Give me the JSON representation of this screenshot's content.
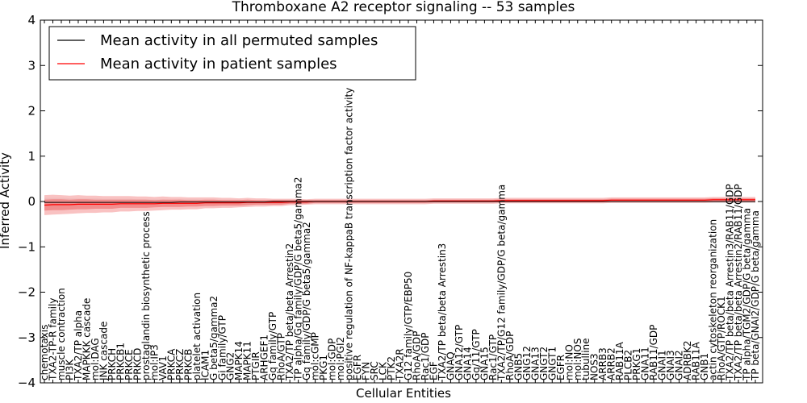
{
  "chart_data": {
    "type": "line",
    "title": "Thromboxane A2 receptor signaling -- 53 samples",
    "xlabel": "Cellular Entities",
    "ylabel": "Inferred Activity",
    "ylim": [
      -4,
      4
    ],
    "yticks": [
      -4,
      -3,
      -2,
      -1,
      0,
      1,
      2,
      3,
      4
    ],
    "ytick_labels": [
      "−4",
      "−3",
      "−2",
      "−1",
      "0",
      "1",
      "2",
      "3",
      "4"
    ],
    "legend_position": "top-left",
    "categories": [
      "chemotaxis",
      "TXA2-TP-R family",
      "muscle contraction",
      "PI3K",
      "TXA2/TP alpha",
      "MAPKKK cascade",
      "mol:DAG",
      "JNK cascade",
      "PRKCH",
      "PRKCB1",
      "PRKCE",
      "PRKCD",
      "prostaglandin biosynthetic process",
      "mol:IP3",
      "VAV1",
      "PRKCA",
      "PRKCZ",
      "PRKCB",
      "platelet activation",
      "ICAM1",
      "G beta5/gamma2",
      "Gi family/GTP",
      "GNG2",
      "MAPK14",
      "MAPK11",
      "PTGIR",
      "ARHGEF1",
      "Gq family/GTP",
      "RhoA/GTP",
      "TXA2/TP beta/beta Arrestin2",
      "TP alpha/Gq family/GDP/G beta5/gamma2",
      "Gq family/GDP/G beta5/gamma2",
      "mol:cGMP",
      "PKG1",
      "mol:GDP",
      "mol:PGI2",
      "positive regulation of NF-kappaB transcription factor activity",
      "EGFR",
      "FYN",
      "SRC",
      "LCK",
      "PTK2",
      "TXA2R",
      "G12 family/GTP/EBP50",
      "RhoA/GDP",
      "Rac1/GDP",
      "EGF",
      "TXA2/TP beta/beta Arrestin3",
      "GNAQ",
      "GNA12/GTP",
      "GNA14",
      "Gq/11/GTP",
      "GNA15",
      "Rac1/GTP",
      "TXA2/TP/G12 family/GDP/G beta/gamma",
      "RhoA/GDP",
      "GNB5",
      "GNG12",
      "GNA13",
      "GNGT2",
      "GNGT1",
      "EGFR",
      "mol:NO",
      "mol:NOS",
      "tubulline",
      "NOS3",
      "ARRB3",
      "ARRB2",
      "RAB11A",
      "PLCB2",
      "PRKG1",
      "GNA11",
      "RAB11/GDP",
      "GNAI1",
      "GNAI3",
      "GNAI2",
      "ADRBK2",
      "RAB11A",
      "GNB1",
      "actin cytoskeleton reorganization",
      "RhoA/GTP/ROCK1",
      "TXA2/TP beta/beta Arrestin3/RAB11/GDP",
      "TXA2/TP beta/beta Arrestin2/RAB11/GDP",
      "TP alpha/TGM2/GDP/G beta/gamma",
      "TP beta/GNAI2/GDP/G beta/gamma"
    ],
    "series": [
      {
        "name": "Mean activity in all permuted samples",
        "color": "#000000",
        "values": [
          -0.02,
          -0.02,
          -0.02,
          -0.02,
          -0.02,
          -0.02,
          -0.02,
          -0.02,
          -0.02,
          -0.02,
          -0.02,
          -0.02,
          -0.02,
          -0.02,
          -0.02,
          -0.02,
          -0.01,
          -0.01,
          -0.01,
          -0.01,
          -0.01,
          -0.01,
          -0.01,
          -0.01,
          -0.01,
          -0.01,
          -0.01,
          0.0,
          0.0,
          0.0,
          0.0,
          0.0,
          0.0,
          0.0,
          0.0,
          0.0,
          0.0,
          0.0,
          0.0,
          0.0,
          0.0,
          0.0,
          0.0,
          0.0,
          0.0,
          0.0,
          0.0,
          0.0,
          0.0,
          0.0,
          0.0,
          0.0,
          0.0,
          0.0,
          0.0,
          0.0,
          0.0,
          0.0,
          0.0,
          0.0,
          0.0,
          0.0,
          0.0,
          0.0,
          0.0,
          0.0,
          0.0,
          0.0,
          0.0,
          0.0,
          0.0,
          0.0,
          0.0,
          0.0,
          0.0,
          0.0,
          0.0,
          0.0,
          0.0,
          0.0,
          0.0,
          0.0,
          0.0,
          0.0,
          0.0
        ]
      },
      {
        "name": "Mean activity in patient samples",
        "color": "#ff0000",
        "values": [
          -0.08,
          -0.07,
          -0.07,
          -0.07,
          -0.06,
          -0.06,
          -0.06,
          -0.06,
          -0.06,
          -0.05,
          -0.05,
          -0.05,
          -0.05,
          -0.05,
          -0.04,
          -0.04,
          -0.04,
          -0.04,
          -0.04,
          -0.03,
          -0.03,
          -0.03,
          -0.03,
          -0.03,
          -0.02,
          -0.02,
          -0.02,
          -0.02,
          -0.02,
          -0.01,
          -0.01,
          -0.01,
          0.0,
          0.0,
          0.0,
          0.0,
          0.0,
          0.0,
          0.0,
          0.0,
          0.0,
          0.0,
          0.0,
          0.0,
          0.0,
          0.0,
          0.01,
          0.01,
          0.01,
          0.01,
          0.01,
          0.01,
          0.01,
          0.01,
          0.02,
          0.02,
          0.02,
          0.02,
          0.02,
          0.02,
          0.02,
          0.02,
          0.02,
          0.02,
          0.02,
          0.02,
          0.02,
          0.03,
          0.03,
          0.03,
          0.03,
          0.03,
          0.03,
          0.03,
          0.03,
          0.03,
          0.03,
          0.03,
          0.03,
          0.04,
          0.04,
          0.04,
          0.04,
          0.04,
          0.04
        ]
      }
    ],
    "band_half_width_inner": [
      0.12,
      0.12,
      0.12,
      0.11,
      0.11,
      0.11,
      0.1,
      0.1,
      0.1,
      0.09,
      0.09,
      0.09,
      0.09,
      0.08,
      0.08,
      0.08,
      0.08,
      0.07,
      0.07,
      0.07,
      0.07,
      0.06,
      0.06,
      0.06,
      0.06,
      0.05,
      0.05,
      0.05,
      0.05,
      0.04,
      0.04,
      0.04,
      0.03,
      0.03,
      0.03,
      0.03,
      0.03,
      0.03,
      0.03,
      0.03,
      0.03,
      0.03,
      0.03,
      0.03,
      0.03,
      0.03,
      0.03,
      0.03,
      0.03,
      0.03,
      0.03,
      0.03,
      0.03,
      0.03,
      0.03,
      0.03,
      0.03,
      0.03,
      0.03,
      0.03,
      0.03,
      0.03,
      0.03,
      0.03,
      0.03,
      0.03,
      0.03,
      0.03,
      0.03,
      0.03,
      0.03,
      0.03,
      0.03,
      0.03,
      0.03,
      0.03,
      0.03,
      0.03,
      0.03,
      0.03,
      0.03,
      0.03,
      0.03,
      0.03,
      0.03
    ],
    "band_half_width_outer": [
      0.22,
      0.22,
      0.21,
      0.2,
      0.2,
      0.19,
      0.19,
      0.18,
      0.18,
      0.17,
      0.17,
      0.16,
      0.16,
      0.15,
      0.15,
      0.14,
      0.14,
      0.13,
      0.13,
      0.12,
      0.12,
      0.11,
      0.11,
      0.1,
      0.1,
      0.09,
      0.09,
      0.08,
      0.08,
      0.07,
      0.07,
      0.06,
      0.06,
      0.06,
      0.06,
      0.06,
      0.06,
      0.06,
      0.06,
      0.06,
      0.06,
      0.06,
      0.06,
      0.06,
      0.06,
      0.06,
      0.06,
      0.06,
      0.06,
      0.06,
      0.06,
      0.06,
      0.06,
      0.06,
      0.06,
      0.06,
      0.06,
      0.06,
      0.06,
      0.06,
      0.06,
      0.06,
      0.06,
      0.06,
      0.06,
      0.06,
      0.06,
      0.06,
      0.06,
      0.06,
      0.06,
      0.06,
      0.06,
      0.06,
      0.06,
      0.06,
      0.06,
      0.06,
      0.06,
      0.06,
      0.06,
      0.06,
      0.06,
      0.06,
      0.06
    ],
    "permuted_band_half_width": [
      0.1,
      0.1,
      0.1,
      0.09,
      0.09,
      0.09,
      0.09,
      0.08,
      0.08,
      0.08,
      0.08,
      0.07,
      0.07,
      0.07,
      0.07,
      0.06,
      0.06,
      0.06,
      0.06,
      0.05,
      0.05,
      0.05,
      0.05,
      0.05,
      0.04,
      0.04,
      0.04,
      0.04,
      0.04,
      0.04,
      0.03,
      0.03,
      0.03,
      0.03,
      0.03,
      0.03,
      0.03,
      0.03,
      0.03,
      0.03,
      0.03,
      0.03,
      0.03,
      0.03,
      0.03,
      0.03,
      0.03,
      0.03,
      0.03,
      0.03,
      0.03,
      0.03,
      0.03,
      0.03,
      0.03,
      0.03,
      0.03,
      0.03,
      0.03,
      0.03,
      0.03,
      0.03,
      0.03,
      0.03,
      0.03,
      0.03,
      0.03,
      0.03,
      0.03,
      0.03,
      0.03,
      0.03,
      0.03,
      0.03,
      0.03,
      0.03,
      0.03,
      0.03,
      0.03,
      0.03,
      0.03,
      0.03,
      0.03,
      0.03,
      0.03
    ],
    "colors": {
      "patient_band_outer": "#f7b3b3",
      "patient_band_inner": "#f08080",
      "permuted_band": "#c8c8c8",
      "axis": "#000000"
    }
  }
}
